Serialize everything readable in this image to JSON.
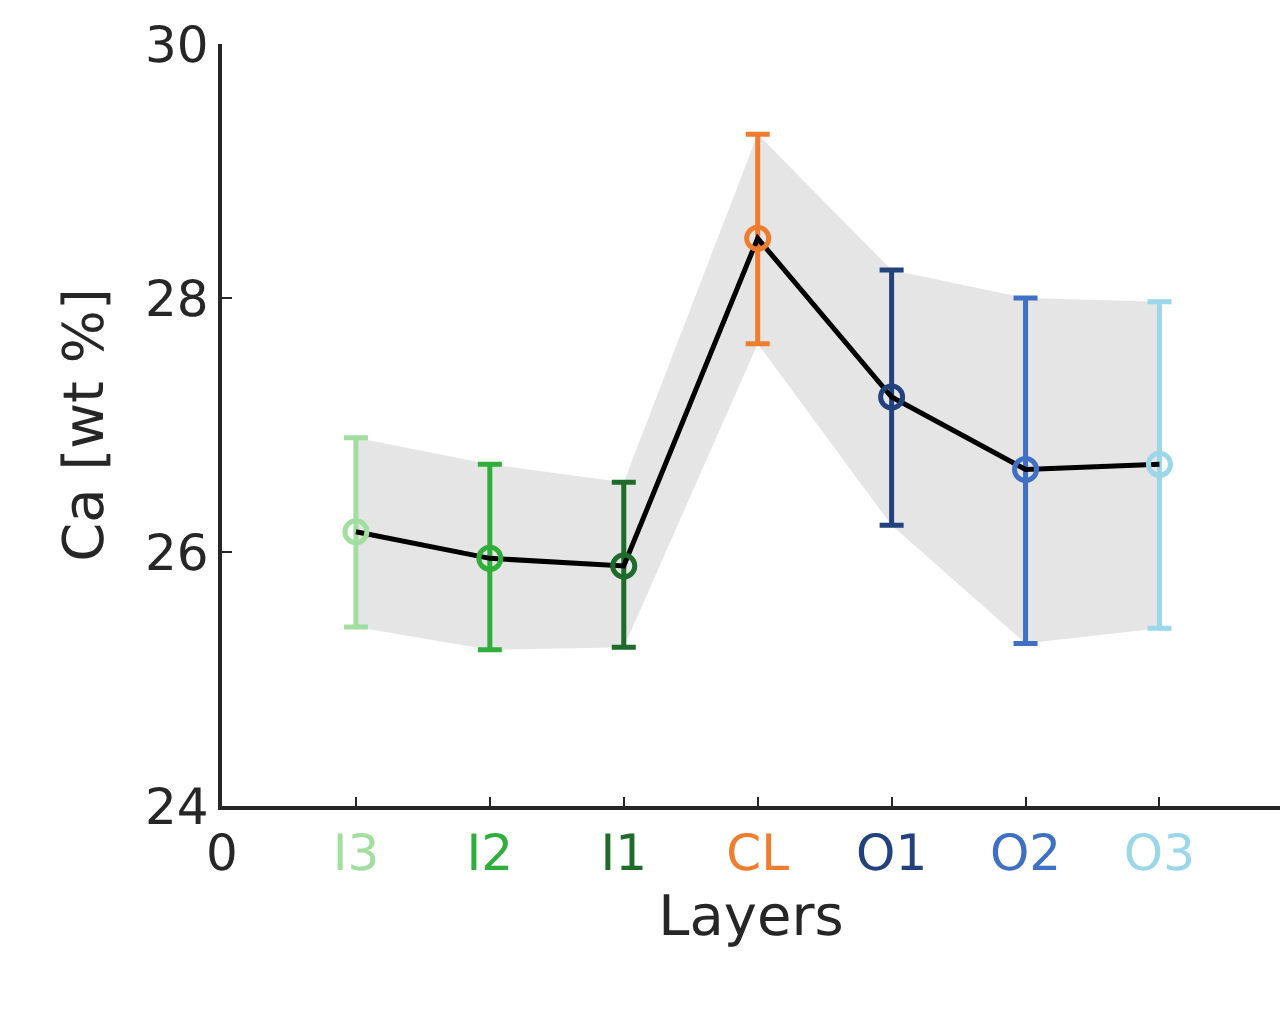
{
  "chart_data": {
    "type": "line",
    "xlabel": "Layers",
    "ylabel": "Ca [wt %]",
    "categories": [
      "0",
      "I3",
      "I2",
      "I1",
      "CL",
      "O1",
      "O2",
      "O3"
    ],
    "series": [
      {
        "color": "#000000",
        "colors": [
          null,
          "#a1dea0",
          "#2fae3c",
          "#1e6b2b",
          "#ee7d2f",
          "#23427d",
          "#4070c4",
          "#9bd6e9"
        ],
        "values": [
          null,
          26.16,
          25.95,
          25.89,
          28.47,
          27.22,
          26.65,
          26.69
        ],
        "errors": [
          null,
          [
            25.41,
            26.9
          ],
          [
            25.23,
            26.69
          ],
          [
            25.25,
            26.55
          ],
          [
            27.64,
            29.29
          ],
          [
            26.21,
            28.22
          ],
          [
            25.28,
            28.0
          ],
          [
            25.4,
            27.97
          ]
        ],
        "lower": [
          null,
          25.41,
          25.23,
          25.25,
          27.64,
          26.21,
          25.28,
          25.4
        ],
        "upper": [
          null,
          26.9,
          26.69,
          26.55,
          29.29,
          28.22,
          28.0,
          27.97
        ]
      }
    ],
    "ylim": [
      24,
      30
    ],
    "yticks": [
      24,
      26,
      28,
      30
    ],
    "grid": false,
    "marker": "circle",
    "line_style": "solid"
  }
}
